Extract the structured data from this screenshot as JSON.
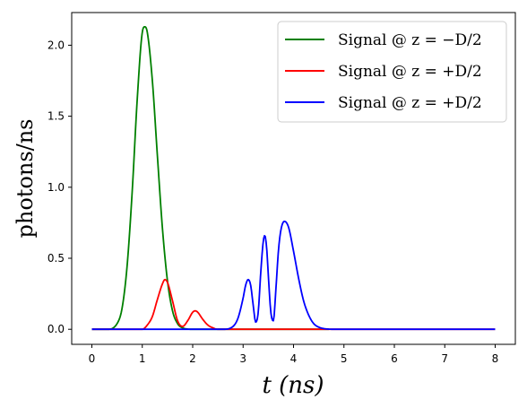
{
  "chart_data": {
    "type": "line",
    "xlabel": "t (ns)",
    "ylabel": "photons/ns",
    "xlim": [
      -0.4,
      8.4
    ],
    "ylim": [
      -0.106,
      2.23
    ],
    "xticks": [
      0,
      1,
      2,
      3,
      4,
      5,
      6,
      7,
      8
    ],
    "yticks": [
      0.0,
      0.5,
      1.0,
      1.5,
      2.0
    ],
    "xtick_labels": [
      "0",
      "1",
      "2",
      "3",
      "4",
      "5",
      "6",
      "7",
      "8"
    ],
    "ytick_labels": [
      "0.0",
      "0.5",
      "1.0",
      "1.5",
      "2.0"
    ],
    "legend_position": "top-right",
    "series": [
      {
        "name": "Signal @ z = −D/2",
        "color": "#008000",
        "x": [
          0.0,
          0.3,
          0.5,
          0.6,
          0.7,
          0.8,
          0.9,
          1.0,
          1.05,
          1.1,
          1.2,
          1.3,
          1.4,
          1.5,
          1.6,
          1.7,
          1.8,
          2.0,
          3.0,
          4.0,
          4.7
        ],
        "y": [
          0.0,
          0.0,
          0.04,
          0.15,
          0.45,
          0.97,
          1.62,
          2.09,
          2.13,
          2.09,
          1.75,
          1.22,
          0.71,
          0.34,
          0.13,
          0.04,
          0.01,
          0.0,
          0.0,
          0.0,
          0.0
        ]
      },
      {
        "name": "Signal @ z = +D/2",
        "color": "#ff0000",
        "x": [
          0.0,
          1.0,
          1.1,
          1.2,
          1.3,
          1.4,
          1.45,
          1.5,
          1.6,
          1.7,
          1.8,
          1.9,
          2.0,
          2.05,
          2.1,
          2.2,
          2.3,
          2.4,
          2.5,
          2.7,
          3.0,
          4.0,
          5.0,
          6.0,
          7.0,
          8.0
        ],
        "y": [
          0.0,
          0.0,
          0.03,
          0.09,
          0.21,
          0.32,
          0.35,
          0.33,
          0.2,
          0.06,
          0.02,
          0.06,
          0.12,
          0.13,
          0.12,
          0.07,
          0.03,
          0.01,
          0.0,
          0.0,
          0.0,
          0.0,
          0.0,
          0.0,
          0.0,
          0.0
        ]
      },
      {
        "name": "Signal @ z = +D/2",
        "color": "#0000ff",
        "x": [
          0.0,
          2.6,
          2.8,
          2.9,
          3.0,
          3.05,
          3.1,
          3.15,
          3.2,
          3.25,
          3.3,
          3.35,
          3.4,
          3.43,
          3.47,
          3.5,
          3.55,
          3.6,
          3.65,
          3.7,
          3.75,
          3.82,
          3.9,
          4.0,
          4.1,
          4.2,
          4.3,
          4.4,
          4.5,
          4.6,
          4.8,
          5.0,
          6.0,
          7.0,
          8.0
        ],
        "y": [
          0.0,
          0.0,
          0.02,
          0.08,
          0.22,
          0.31,
          0.35,
          0.31,
          0.17,
          0.05,
          0.12,
          0.4,
          0.62,
          0.66,
          0.56,
          0.38,
          0.12,
          0.06,
          0.28,
          0.55,
          0.7,
          0.76,
          0.72,
          0.55,
          0.36,
          0.2,
          0.1,
          0.04,
          0.015,
          0.005,
          0.0,
          0.0,
          0.0,
          0.0,
          0.0
        ]
      }
    ]
  }
}
